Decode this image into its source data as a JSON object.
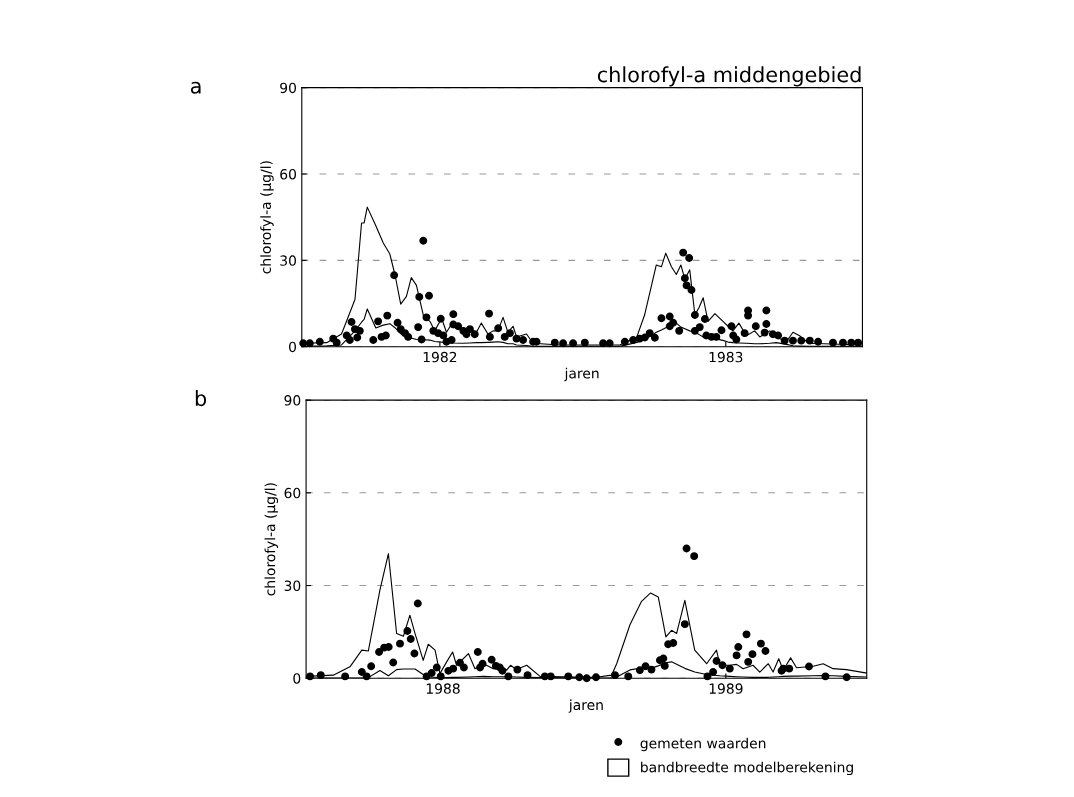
{
  "chart_data": [
    {
      "type": "line",
      "title": "chlorofyl-a middengebied",
      "xlabel": "jaren",
      "ylabel": "chlorofyl-a (µg/l)",
      "annotations": [
        "a"
      ],
      "xlim": [
        1981.517,
        1983.478
      ],
      "xticks": [
        1982,
        1983
      ],
      "ylim": [
        0,
        90
      ],
      "yticks": [
        0,
        30,
        60,
        90
      ],
      "grid": "y",
      "series": [
        {
          "color": "#000000",
          "marker": "none",
          "x": [
            1981.52,
            1981.604,
            1981.656,
            1981.703,
            1981.726,
            1981.735,
            1981.746,
            1981.776,
            1981.802,
            1981.825,
            1981.843,
            1981.863,
            1981.883,
            1981.9,
            1981.918,
            1981.942,
            1981.965,
            1981.982,
            1982.006,
            1982.023,
            1982.047,
            1982.081,
            1982.105,
            1982.128,
            1982.145,
            1982.168,
            1982.186,
            1982.203,
            1982.221,
            1982.238,
            1982.256,
            1982.268,
            1982.303,
            1982.326,
            1982.42,
            1982.629,
            1982.689,
            1982.716,
            1982.734,
            1982.757,
            1982.775,
            1982.79,
            1982.81,
            1982.827,
            1982.843,
            1982.857,
            1982.874,
            1982.892,
            1982.907,
            1982.921,
            1982.938,
            1982.962,
            1982.99,
            1983.008,
            1983.025,
            1983.046,
            1983.072,
            1983.101,
            1983.119,
            1983.154,
            1983.177,
            1983.212,
            1983.235,
            1983.258,
            1983.29,
            1983.474
          ],
          "values": [
            1.2,
            1.4,
            4.4,
            16.4,
            43,
            43,
            48.5,
            42,
            36,
            32.2,
            25,
            14.8,
            17.5,
            24,
            21.3,
            11,
            8.8,
            5.5,
            9.9,
            5,
            8.8,
            5,
            6.1,
            5,
            8.2,
            4.4,
            5.5,
            5.5,
            10.2,
            5,
            7.1,
            3.4,
            4.4,
            1.2,
            0.6,
            0.6,
            3.4,
            11,
            18.6,
            28.4,
            27.8,
            32.5,
            27.8,
            25.1,
            28.4,
            23.4,
            26.7,
            11,
            13.7,
            17,
            8.8,
            11.5,
            8.8,
            7.1,
            5.5,
            8.2,
            3.8,
            5.5,
            3.4,
            5.5,
            3.4,
            1.7,
            5,
            3.8,
            1.2,
            0.6
          ]
        },
        {
          "color": "#000000",
          "marker": "none",
          "x": [
            1981.52,
            1981.604,
            1981.656,
            1981.703,
            1981.726,
            1981.735,
            1981.746,
            1981.776,
            1981.802,
            1981.825,
            1981.843,
            1981.863,
            1981.883,
            1981.9,
            1981.918,
            1981.942,
            1981.965,
            1981.982,
            1982.006,
            1982.023,
            1982.047,
            1982.081,
            1982.105,
            1982.128,
            1982.145,
            1982.168,
            1982.186,
            1982.203,
            1982.221,
            1982.238,
            1982.256,
            1982.268,
            1982.303,
            1982.326,
            1982.42,
            1982.629,
            1982.689,
            1982.716,
            1982.734,
            1982.757,
            1982.775,
            1982.79,
            1982.81,
            1982.827,
            1982.843,
            1982.857,
            1982.874,
            1982.892,
            1982.907,
            1982.921,
            1982.938,
            1982.962,
            1982.99,
            1983.008,
            1983.025,
            1983.046,
            1983.072,
            1983.101,
            1983.119,
            1983.154,
            1983.177,
            1983.212,
            1983.235,
            1983.258,
            1983.29,
            1983.474
          ],
          "values": [
            0.1,
            0.3,
            0.6,
            5.5,
            8.5,
            9.5,
            13.1,
            6.5,
            7.5,
            8,
            6.6,
            4.5,
            3.4,
            3,
            2.5,
            2.4,
            2.3,
            1.8,
            1.6,
            1.5,
            1.3,
            1.2,
            1.3,
            1.4,
            1.4,
            1.5,
            1.6,
            1.7,
            1.5,
            1.0,
            1.0,
            0.6,
            0.4,
            0.1,
            0.1,
            0.1,
            1.5,
            2.5,
            3.5,
            5,
            5.8,
            6.6,
            7.5,
            8.2,
            6.8,
            6.2,
            5.5,
            5,
            4.2,
            3.4,
            3.2,
            2.8,
            2.2,
            1.6,
            1.4,
            1.3,
            1.2,
            1.0,
            1.0,
            1.2,
            1.4,
            0.8,
            0.3,
            0.2,
            0.1,
            0.1
          ]
        },
        {
          "type": "scatter",
          "color": "#000000",
          "marker": "circle",
          "x": [
            1981.522,
            1981.545,
            1981.58,
            1981.627,
            1981.639,
            1981.674,
            1981.685,
            1981.691,
            1981.703,
            1981.711,
            1981.72,
            1981.767,
            1981.784,
            1981.796,
            1981.811,
            1981.816,
            1981.84,
            1981.852,
            1981.863,
            1981.878,
            1981.889,
            1981.924,
            1981.928,
            1981.936,
            1981.942,
            1981.953,
            1981.962,
            1981.977,
            1981.994,
            1982.003,
            1982.012,
            1982.023,
            1982.041,
            1982.047,
            1982.047,
            1982.064,
            1982.082,
            1982.093,
            1982.105,
            1982.122,
            1982.172,
            1982.175,
            1982.204,
            1982.227,
            1982.245,
            1982.268,
            1982.291,
            1982.326,
            1982.338,
            1982.402,
            1982.431,
            1982.466,
            1982.507,
            1982.571,
            1982.594,
            1982.647,
            1982.676,
            1982.699,
            1982.717,
            1982.734,
            1982.752,
            1982.775,
            1982.804,
            1982.804,
            1982.816,
            1982.837,
            1982.851,
            1982.857,
            1982.863,
            1982.872,
            1982.88,
            1982.892,
            1982.892,
            1982.909,
            1982.927,
            1982.932,
            1982.95,
            1982.967,
            1982.985,
            1983.02,
            1983.026,
            1983.037,
            1983.066,
            1983.078,
            1983.078,
            1983.105,
            1983.136,
            1983.142,
            1983.142,
            1983.165,
            1983.183,
            1983.206,
            1983.235,
            1983.264,
            1983.294,
            1983.323,
            1983.375,
            1983.41,
            1983.439,
            1983.463
          ],
          "values": [
            1.2,
            1.2,
            1.7,
            2.8,
            1.4,
            3.9,
            2.3,
            8.6,
            6.1,
            3.2,
            5.5,
            2.3,
            8.8,
            3.4,
            3.9,
            10.8,
            24.8,
            8.3,
            6.1,
            4.7,
            3.4,
            6.8,
            17.3,
            2.5,
            36.8,
            10.2,
            17.7,
            5.5,
            4.7,
            9.7,
            3.9,
            1.7,
            2.3,
            11.3,
            7.7,
            7.1,
            5.5,
            4.3,
            6.1,
            4.3,
            11.5,
            3.4,
            6.4,
            3.4,
            4.7,
            2.8,
            2.3,
            1.7,
            1.7,
            1.4,
            1.2,
            1.2,
            1.4,
            1.2,
            1.2,
            1.7,
            2.3,
            2.8,
            3.2,
            4.7,
            3.1,
            9.9,
            10.5,
            7.1,
            8.3,
            5.5,
            32.7,
            23.8,
            21.3,
            30.8,
            19.7,
            11,
            5.5,
            6.8,
            9.6,
            3.9,
            3.4,
            3.4,
            5.7,
            7.1,
            3.9,
            2.5,
            4.7,
            12.6,
            10.8,
            7.1,
            4.9,
            12.6,
            7.9,
            4.3,
            3.9,
            2.1,
            2.1,
            2.1,
            2.1,
            1.7,
            1.4,
            1.4,
            1.4,
            1.4
          ]
        }
      ]
    },
    {
      "type": "line",
      "xlabel": "jaren",
      "ylabel": "chlorofyl-a (µg/l)",
      "annotations": [
        "b"
      ],
      "xlim": [
        1987.516,
        1989.498
      ],
      "xticks": [
        1988,
        1989
      ],
      "ylim": [
        0,
        90
      ],
      "yticks": [
        0,
        30,
        60,
        90
      ],
      "grid": "y",
      "legend": "bottom",
      "series": [
        {
          "type": "scatter",
          "name": "gemeten waarden",
          "color": "#000000",
          "marker": "circle",
          "x": [
            1987.53,
            1987.568,
            1987.654,
            1987.713,
            1987.73,
            1987.746,
            1987.774,
            1987.792,
            1987.808,
            1987.824,
            1987.848,
            1987.874,
            1987.886,
            1987.899,
            1987.911,
            1987.942,
            1987.96,
            1987.978,
            1987.992,
            1988.019,
            1988.036,
            1988.06,
            1988.074,
            1988.123,
            1988.131,
            1988.14,
            1988.172,
            1988.187,
            1988.201,
            1988.21,
            1988.231,
            1988.263,
            1988.299,
            1988.36,
            1988.381,
            1988.443,
            1988.482,
            1988.508,
            1988.541,
            1988.608,
            1988.655,
            1988.696,
            1988.716,
            1988.737,
            1988.767,
            1988.779,
            1988.784,
            1988.796,
            1988.814,
            1988.855,
            1988.861,
            1988.888,
            1988.935,
            1988.955,
            1988.967,
            1988.988,
            1989.014,
            1989.038,
            1989.044,
            1989.073,
            1989.079,
            1989.094,
            1989.124,
            1989.14,
            1989.197,
            1989.203,
            1989.224,
            1989.294,
            1989.352,
            1989.427
          ],
          "values": [
            0.6,
            1.0,
            0.6,
            2.0,
            0.6,
            3.9,
            8.5,
            9.9,
            10.1,
            5.1,
            11.2,
            15.3,
            12.7,
            8.0,
            24.2,
            0.6,
            1.7,
            3.5,
            0.6,
            2.4,
            3.1,
            5.0,
            3.5,
            8.5,
            3.5,
            4.7,
            6.0,
            4.0,
            3.5,
            2.4,
            0.6,
            2.8,
            1.0,
            0.6,
            0.6,
            0.6,
            0.3,
            0,
            0.3,
            1.0,
            0.6,
            2.6,
            3.9,
            2.8,
            5.8,
            6.4,
            4.0,
            11.0,
            11.4,
            17.5,
            42.0,
            39.5,
            0.6,
            2.0,
            5.6,
            4.2,
            3.1,
            7.4,
            10.1,
            14.2,
            5.3,
            7.8,
            11.2,
            8.8,
            2.4,
            3.1,
            3.1,
            3.8,
            0.6,
            0.3
          ]
        },
        {
          "name": "bandbreedte modelberekening",
          "color": "#000000",
          "marker": "none",
          "x": [
            1987.518,
            1987.612,
            1987.671,
            1987.713,
            1987.736,
            1987.777,
            1987.807,
            1987.836,
            1987.86,
            1987.883,
            1987.901,
            1987.93,
            1987.948,
            1987.972,
            1987.989,
            1988.013,
            1988.034,
            1988.048,
            1988.09,
            1988.113,
            1988.143,
            1988.178,
            1988.201,
            1988.225,
            1988.239,
            1988.26,
            1988.296,
            1988.343,
            1988.508,
            1988.543,
            1988.596,
            1988.614,
            1988.661,
            1988.702,
            1988.734,
            1988.761,
            1988.788,
            1988.808,
            1988.826,
            1988.855,
            1988.89,
            1988.932,
            1988.967,
            1988.979,
            1989.014,
            1989.038,
            1989.061,
            1989.096,
            1989.12,
            1989.15,
            1989.167,
            1989.187,
            1989.203,
            1989.229,
            1989.25,
            1989.309,
            1989.344,
            1989.379,
            1989.426,
            1989.497
          ],
          "values": [
            0.6,
            1.0,
            3.7,
            9.1,
            8.8,
            28.5,
            40.3,
            14.5,
            13.6,
            20.4,
            14.5,
            5.8,
            11,
            9.1,
            1.5,
            5.3,
            8.5,
            4.2,
            8,
            3.1,
            4.7,
            3.1,
            4.2,
            2.6,
            4.2,
            2.8,
            4.2,
            0.6,
            0.3,
            0.3,
            1.0,
            4.7,
            17.3,
            24.9,
            27.6,
            26.3,
            13.4,
            15.5,
            14.5,
            25.2,
            9.1,
            4.7,
            9.1,
            4.2,
            4.2,
            4.5,
            3.1,
            4.2,
            2.0,
            4.7,
            2.0,
            6.3,
            2.6,
            6.6,
            3.4,
            3.9,
            4.7,
            3.1,
            2.8,
            1.7
          ]
        },
        {
          "color": "#000000",
          "marker": "none",
          "x": [
            1987.518,
            1987.612,
            1987.671,
            1987.713,
            1987.736,
            1987.777,
            1987.807,
            1987.836,
            1987.86,
            1987.883,
            1987.901,
            1987.93,
            1987.948,
            1987.972,
            1987.989,
            1988.013,
            1988.034,
            1988.048,
            1988.09,
            1988.113,
            1988.143,
            1988.178,
            1988.201,
            1988.225,
            1988.239,
            1988.26,
            1988.296,
            1988.343,
            1988.508,
            1988.543,
            1988.596,
            1988.614,
            1988.661,
            1988.702,
            1988.734,
            1988.761,
            1988.788,
            1988.808,
            1988.826,
            1988.855,
            1988.89,
            1988.932,
            1988.967,
            1988.979,
            1989.014,
            1989.038,
            1989.061,
            1989.096,
            1989.12,
            1989.15,
            1989.167,
            1989.187,
            1989.203,
            1989.229,
            1989.25,
            1989.309,
            1989.344,
            1989.379,
            1989.426,
            1989.497
          ],
          "values": [
            0.1,
            0.1,
            0.1,
            0.1,
            0.2,
            2.5,
            0.8,
            2.8,
            3.0,
            3.0,
            3.0,
            1.2,
            0.4,
            0.3,
            0.1,
            0.2,
            0.3,
            0.3,
            0.4,
            0.5,
            0.6,
            0.5,
            0.5,
            0.5,
            0.5,
            0.4,
            0.3,
            0.2,
            0.1,
            0.1,
            0.1,
            0.4,
            2.7,
            3.3,
            3.2,
            4.0,
            5.0,
            5.3,
            4.5,
            3.2,
            2.0,
            1.2,
            0.9,
            0.8,
            0.6,
            0.5,
            0.4,
            0.3,
            0.3,
            0.3,
            0.4,
            0.5,
            0.6,
            0.7,
            0.7,
            0.8,
            0.9,
            0.8,
            0.6,
            0.4
          ]
        }
      ]
    }
  ]
}
